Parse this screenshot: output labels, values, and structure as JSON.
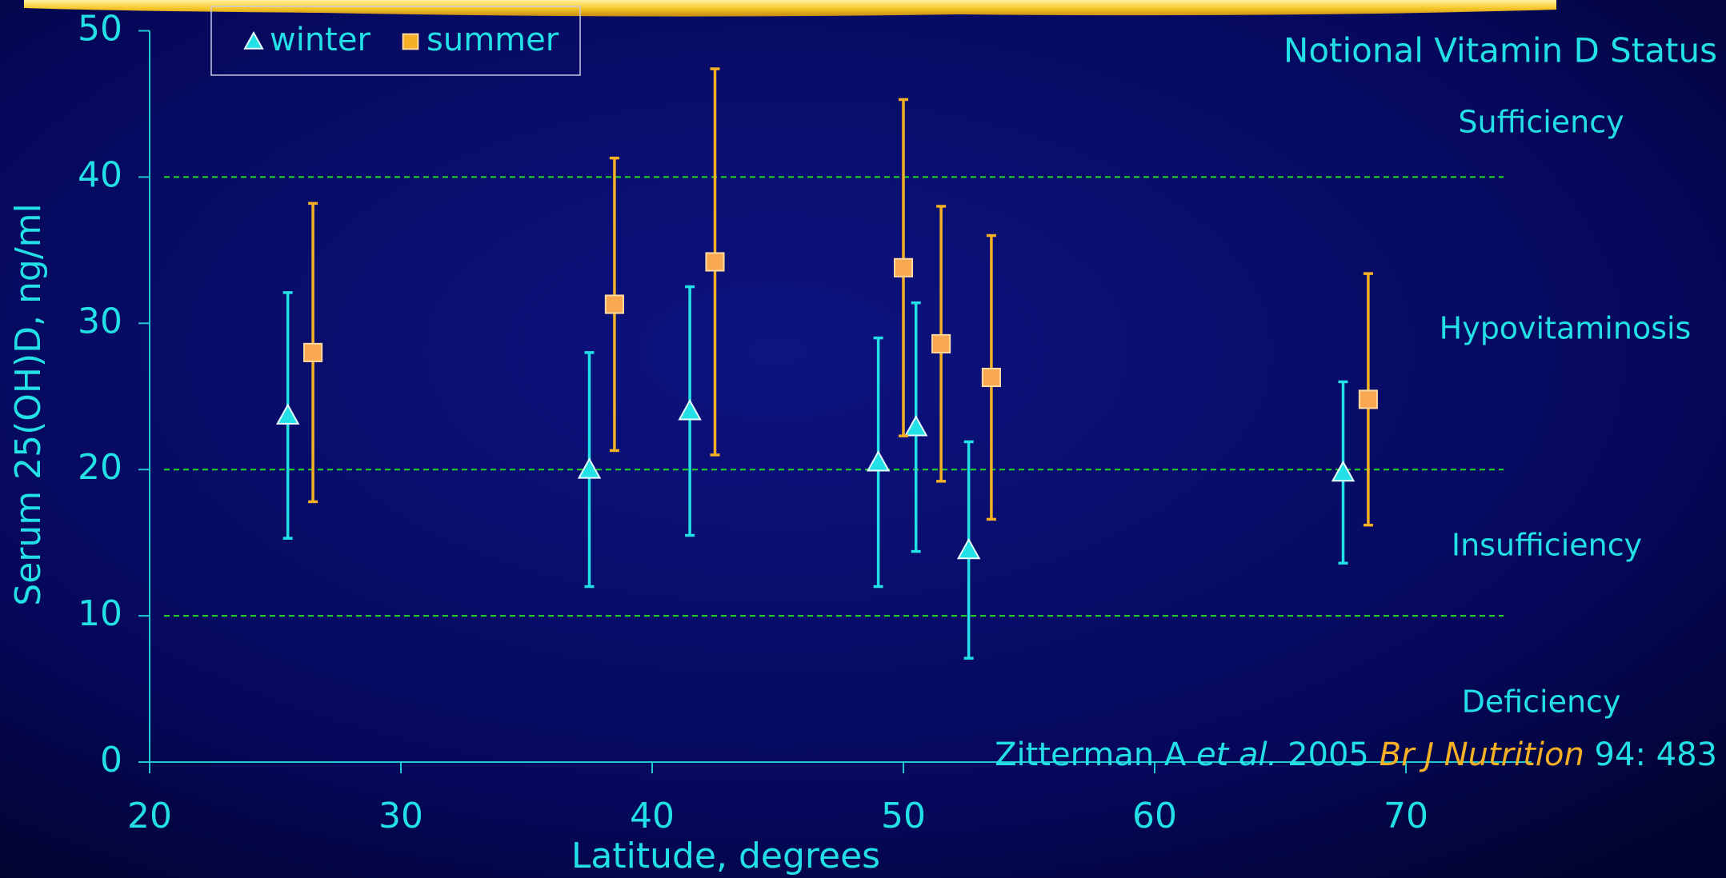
{
  "chart_data": {
    "type": "scatter",
    "xlabel": "Latitude, degrees",
    "ylabel": "Serum 25(OH)D, ng/ml",
    "xlim": [
      20,
      75
    ],
    "xticks": [
      20,
      30,
      40,
      50,
      60,
      70
    ],
    "ylim": [
      0,
      50
    ],
    "yticks": [
      0,
      10,
      20,
      30,
      40,
      50
    ],
    "legend": "top-left",
    "reference_lines": {
      "values": [
        40,
        20,
        10
      ],
      "color": "#22dd22"
    },
    "series": [
      {
        "name": "winter",
        "color": "#22e0e6",
        "marker": "triangle",
        "x": [
          25.5,
          37.5,
          41.5,
          49.0,
          50.5,
          52.6,
          67.5
        ],
        "values": [
          23.7,
          20.0,
          24.0,
          20.5,
          22.9,
          14.5,
          19.8
        ],
        "errors": [
          8.4,
          8.0,
          8.5,
          8.5,
          8.5,
          7.4,
          6.2
        ]
      },
      {
        "name": "summer",
        "color": "#f5b025",
        "marker": "square",
        "x": [
          26.5,
          38.5,
          42.5,
          50.0,
          51.5,
          53.5,
          68.5
        ],
        "values": [
          28.0,
          31.3,
          34.2,
          33.8,
          28.6,
          26.3,
          24.8
        ],
        "errors": [
          10.2,
          10.0,
          13.2,
          11.5,
          9.4,
          9.7,
          8.6
        ]
      }
    ],
    "annotations": [
      "Notional Vitamin D Status",
      "Sufficiency",
      "Hypovitaminosis",
      "Insufficiency",
      "Deficiency"
    ],
    "citation": [
      "Zitterman A ",
      "et al.",
      " 2005 ",
      "Br J Nutrition",
      " 94: 483"
    ]
  }
}
